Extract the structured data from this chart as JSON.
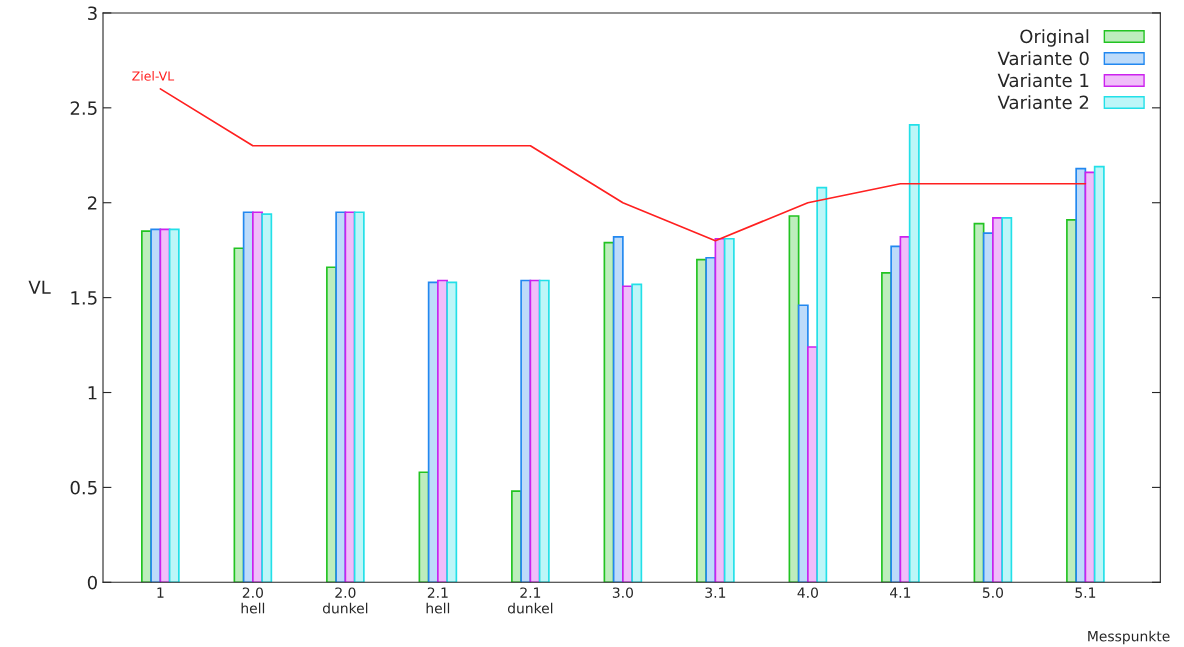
{
  "chart_data": {
    "type": "bar",
    "ylabel": "VL",
    "xlabel": "Messpunkte",
    "categories": [
      "1",
      "2.0\nhell",
      "2.0\ndunkel",
      "2.1\nhell",
      "2.1\ndunkel",
      "3.0",
      "3.1",
      "4.0",
      "4.1",
      "5.0",
      "5.1"
    ],
    "series": [
      {
        "name": "Original",
        "color": "#22c322",
        "values": [
          1.85,
          1.76,
          1.66,
          0.58,
          0.48,
          1.79,
          1.7,
          1.93,
          1.63,
          1.89,
          1.91
        ]
      },
      {
        "name": "Variante 0",
        "color": "#2288f0",
        "values": [
          1.86,
          1.95,
          1.95,
          1.58,
          1.59,
          1.82,
          1.71,
          1.46,
          1.77,
          1.84,
          2.18
        ]
      },
      {
        "name": "Variante 1",
        "color": "#cc22ee",
        "values": [
          1.86,
          1.95,
          1.95,
          1.59,
          1.59,
          1.56,
          1.81,
          1.24,
          1.82,
          1.92,
          2.16
        ]
      },
      {
        "name": "Variante 2",
        "color": "#22e0e8",
        "values": [
          1.86,
          1.94,
          1.95,
          1.58,
          1.59,
          1.57,
          1.81,
          2.08,
          2.41,
          1.92,
          2.19
        ]
      },
      {
        "name": "Ziel-VL",
        "type": "line",
        "color": "#ff2020",
        "values": [
          2.6,
          2.3,
          2.3,
          2.3,
          2.3,
          2.0,
          1.8,
          2.0,
          2.1,
          2.1,
          2.1
        ]
      }
    ],
    "ylim": [
      0,
      3
    ],
    "yticks": [
      0,
      0.5,
      1,
      1.5,
      2,
      2.5,
      3
    ],
    "grid": false,
    "legend": "top right"
  }
}
